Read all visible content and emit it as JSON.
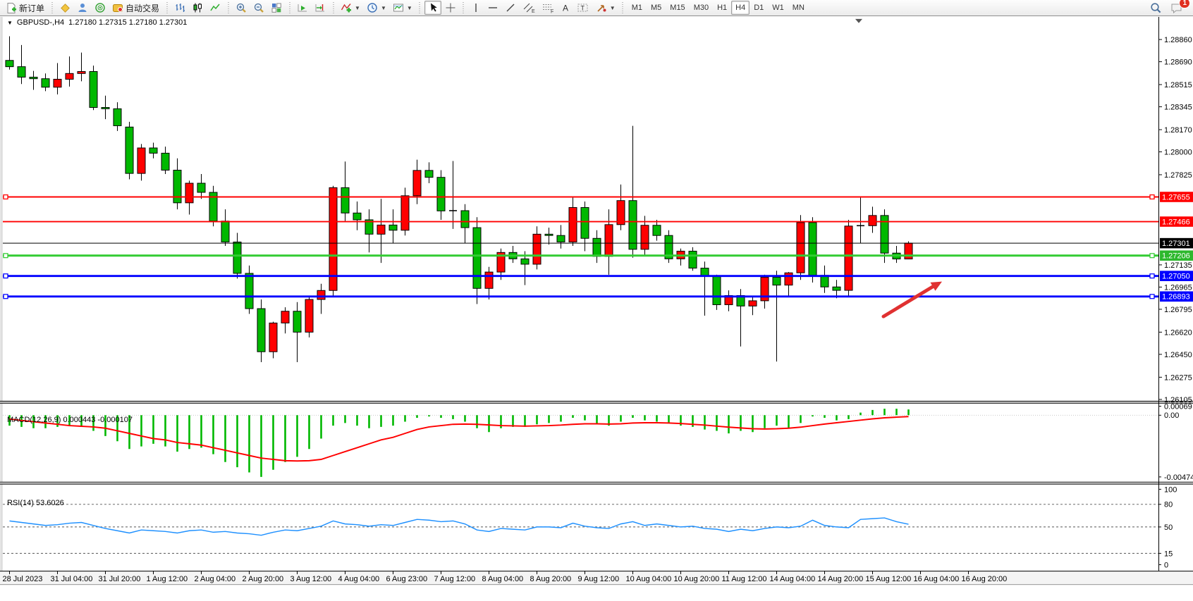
{
  "toolbar": {
    "new_order_label": "新订单",
    "autotrading_label": "自动交易",
    "timeframes": [
      "M1",
      "M5",
      "M15",
      "M30",
      "H1",
      "H4",
      "D1",
      "W1",
      "MN"
    ],
    "active_timeframe": "H4",
    "notification_count": "1"
  },
  "chart": {
    "title_symbol": "GBPUSD-,H4",
    "title_ohlc": "1.27180 1.27315 1.27180 1.27301",
    "colors": {
      "up": "#ff0000",
      "down": "#00b800",
      "wick": "#000000",
      "hline_red": "#ff0000",
      "hline_green": "#33cc33",
      "hline_blue": "#0000ff",
      "price_line": "#000000",
      "arrow": "#e03131",
      "macd_hist": "#00b800",
      "macd_signal": "#ff0000",
      "rsi_line": "#1e90ff"
    },
    "price_axis_ticks": [
      "1.28860",
      "1.28690",
      "1.28515",
      "1.28345",
      "1.28170",
      "1.28000",
      "1.27825",
      "1.27135",
      "1.26965",
      "1.26795",
      "1.26620",
      "1.26450",
      "1.26275",
      "1.26105"
    ],
    "price_tags": [
      {
        "value": "1.27655",
        "bg": "#ff0000",
        "fg": "#ffffff"
      },
      {
        "value": "1.27466",
        "bg": "#ff0000",
        "fg": "#ffffff"
      },
      {
        "value": "1.27301",
        "bg": "#000000",
        "fg": "#ffffff"
      },
      {
        "value": "1.27206",
        "bg": "#2db82d",
        "fg": "#ffffff"
      },
      {
        "value": "1.27050",
        "bg": "#0000ff",
        "fg": "#ffffff"
      },
      {
        "value": "1.26893",
        "bg": "#0000ff",
        "fg": "#ffffff"
      }
    ],
    "hlines": [
      {
        "price": 1.27655,
        "color": "#ff0000",
        "width": 2,
        "handles": true
      },
      {
        "price": 1.27466,
        "color": "#ff0000",
        "width": 2,
        "handles": false
      },
      {
        "price": 1.27301,
        "color": "#000000",
        "width": 1,
        "handles": false
      },
      {
        "price": 1.27206,
        "color": "#33cc33",
        "width": 3,
        "handles": true
      },
      {
        "price": 1.2705,
        "color": "#0000ff",
        "width": 3,
        "handles": true
      },
      {
        "price": 1.26893,
        "color": "#0000ff",
        "width": 3,
        "handles": true
      }
    ],
    "time_labels": [
      "28 Jul 2023",
      "31 Jul 04:00",
      "31 Jul 20:00",
      "1 Aug 12:00",
      "2 Aug 04:00",
      "2 Aug 20:00",
      "3 Aug 12:00",
      "4 Aug 04:00",
      "6 Aug 23:00",
      "7 Aug 12:00",
      "8 Aug 04:00",
      "8 Aug 20:00",
      "9 Aug 12:00",
      "10 Aug 04:00",
      "10 Aug 20:00",
      "11 Aug 12:00",
      "14 Aug 04:00",
      "14 Aug 20:00",
      "15 Aug 12:00",
      "16 Aug 04:00",
      "16 Aug 20:00"
    ],
    "candles": [
      [
        1.287,
        1.28885,
        1.2863,
        1.28652
      ],
      [
        1.28652,
        1.28818,
        1.28519,
        1.28572
      ],
      [
        1.28572,
        1.2862,
        1.28475,
        1.2856
      ],
      [
        1.2856,
        1.286,
        1.28465,
        1.28495
      ],
      [
        1.28495,
        1.2868,
        1.2844,
        1.28556
      ],
      [
        1.28556,
        1.2873,
        1.285,
        1.286
      ],
      [
        1.286,
        1.2876,
        1.2854,
        1.28615
      ],
      [
        1.28615,
        1.2866,
        1.2832,
        1.2834
      ],
      [
        1.2834,
        1.2843,
        1.2825,
        1.2833
      ],
      [
        1.2833,
        1.2838,
        1.2816,
        1.282
      ],
      [
        1.2819,
        1.2823,
        1.2779,
        1.27835
      ],
      [
        1.27835,
        1.2806,
        1.2778,
        1.2803
      ],
      [
        1.2803,
        1.2807,
        1.2795,
        1.2799
      ],
      [
        1.2799,
        1.2804,
        1.2783,
        1.2786
      ],
      [
        1.2786,
        1.2795,
        1.2756,
        1.2761
      ],
      [
        1.2761,
        1.2778,
        1.2752,
        1.2776
      ],
      [
        1.2776,
        1.2783,
        1.2764,
        1.2769
      ],
      [
        1.2769,
        1.2774,
        1.2743,
        1.2747
      ],
      [
        1.2747,
        1.2756,
        1.2728,
        1.2731
      ],
      [
        1.2731,
        1.2738,
        1.2703,
        1.2707
      ],
      [
        1.2707,
        1.2713,
        1.2676,
        1.268
      ],
      [
        1.268,
        1.2687,
        1.2639,
        1.2647
      ],
      [
        1.2647,
        1.267,
        1.2642,
        1.2669
      ],
      [
        1.2669,
        1.2681,
        1.2661,
        1.2678
      ],
      [
        1.2678,
        1.2685,
        1.2639,
        1.2662
      ],
      [
        1.2662,
        1.269,
        1.2658,
        1.2687
      ],
      [
        1.2687,
        1.2699,
        1.2676,
        1.26939
      ],
      [
        1.26939,
        1.2774,
        1.269,
        1.27726
      ],
      [
        1.27726,
        1.27926,
        1.2747,
        1.27532
      ],
      [
        1.27532,
        1.2762,
        1.274,
        1.2748
      ],
      [
        1.2748,
        1.2756,
        1.2723,
        1.2737
      ],
      [
        1.2737,
        1.2764,
        1.2715,
        1.2744
      ],
      [
        1.2744,
        1.2756,
        1.273,
        1.274
      ],
      [
        1.274,
        1.27726,
        1.2736,
        1.27664
      ],
      [
        1.27664,
        1.2794,
        1.276,
        1.27858
      ],
      [
        1.27858,
        1.2792,
        1.2776,
        1.27805
      ],
      [
        1.27805,
        1.2786,
        1.2748,
        1.27548
      ],
      [
        1.27548,
        1.2793,
        1.2741,
        1.2755
      ],
      [
        1.2755,
        1.276,
        1.273,
        1.2742
      ],
      [
        1.2742,
        1.275,
        1.26835,
        1.26955
      ],
      [
        1.26955,
        1.2712,
        1.2687,
        1.2708
      ],
      [
        1.2708,
        1.2726,
        1.2702,
        1.2723
      ],
      [
        1.2723,
        1.2728,
        1.2715,
        1.27181
      ],
      [
        1.27181,
        1.2724,
        1.2698,
        1.2714
      ],
      [
        1.2714,
        1.2743,
        1.271,
        1.2737
      ],
      [
        1.2737,
        1.2742,
        1.2729,
        1.2736
      ],
      [
        1.2736,
        1.2744,
        1.2726,
        1.2731
      ],
      [
        1.2731,
        1.2765,
        1.2728,
        1.27574
      ],
      [
        1.27574,
        1.2762,
        1.2724,
        1.27338
      ],
      [
        1.27338,
        1.274,
        1.2715,
        1.272
      ],
      [
        1.272,
        1.2756,
        1.2706,
        1.27443
      ],
      [
        1.27443,
        1.2775,
        1.274,
        1.27627
      ],
      [
        1.27627,
        1.28199,
        1.2719,
        1.27254
      ],
      [
        1.27254,
        1.2751,
        1.272,
        1.27438
      ],
      [
        1.27438,
        1.2748,
        1.2732,
        1.2736
      ],
      [
        1.2736,
        1.274,
        1.2715,
        1.27181
      ],
      [
        1.27181,
        1.2726,
        1.2713,
        1.2724
      ],
      [
        1.2724,
        1.2727,
        1.2709,
        1.2711
      ],
      [
        1.2711,
        1.2716,
        1.26746,
        1.2705
      ],
      [
        1.2705,
        1.2706,
        1.2679,
        1.2683
      ],
      [
        1.2683,
        1.2694,
        1.2678,
        1.269
      ],
      [
        1.269,
        1.2695,
        1.2651,
        1.2682
      ],
      [
        1.2682,
        1.269,
        1.2675,
        1.2686
      ],
      [
        1.2686,
        1.2706,
        1.268,
        1.2704
      ],
      [
        1.2704,
        1.2709,
        1.26395,
        1.2698
      ],
      [
        1.2698,
        1.2708,
        1.269,
        1.27074
      ],
      [
        1.27074,
        1.27516,
        1.2702,
        1.27459
      ],
      [
        1.27459,
        1.275,
        1.27,
        1.27055
      ],
      [
        1.27055,
        1.2713,
        1.2692,
        1.26966
      ],
      [
        1.26966,
        1.2702,
        1.2688,
        1.2694
      ],
      [
        1.2694,
        1.2748,
        1.269,
        1.27432
      ],
      [
        1.27432,
        1.27655,
        1.273,
        1.27435
      ],
      [
        1.27435,
        1.2758,
        1.2738,
        1.27513
      ],
      [
        1.27513,
        1.2756,
        1.2715,
        1.27225
      ],
      [
        1.27225,
        1.2728,
        1.2715,
        1.2718
      ],
      [
        1.2718,
        1.27315,
        1.2718,
        1.27301
      ]
    ]
  },
  "macd": {
    "label": "MACD(12,26,9) 0.000443 -0.000107",
    "axis_labels": [
      "0.00069",
      "0.00",
      "-0.004748"
    ],
    "axis_values": [
      0.00069,
      0.0,
      -0.004748
    ],
    "histogram": [
      -0.0008,
      -0.0009,
      -0.001,
      -0.001,
      -0.0009,
      -0.0008,
      -0.0009,
      -0.0012,
      -0.0016,
      -0.002,
      -0.0026,
      -0.0024,
      -0.0022,
      -0.0024,
      -0.0028,
      -0.0026,
      -0.0025,
      -0.003,
      -0.0036,
      -0.004,
      -0.0044,
      -0.00475,
      -0.0042,
      -0.0036,
      -0.0032,
      -0.0026,
      -0.0018,
      -0.0008,
      -0.0006,
      -0.0008,
      -0.001,
      -0.0009,
      -0.0008,
      -0.0005,
      -0.0002,
      -0.0001,
      -0.0002,
      -0.0003,
      -0.0005,
      -0.001,
      -0.0013,
      -0.001,
      -0.0009,
      -0.0009,
      -0.0007,
      -0.0006,
      -0.0005,
      -0.0002,
      -0.0004,
      -0.0007,
      -0.0008,
      -0.0005,
      -0.0002,
      -0.0004,
      -0.0005,
      -0.0006,
      -0.0008,
      -0.0009,
      -0.0011,
      -0.0012,
      -0.0014,
      -0.0012,
      -0.0013,
      -0.001,
      -0.0008,
      -0.001,
      -0.0006,
      -0.0001,
      -0.0002,
      -0.0004,
      -0.0003,
      0.0002,
      0.0004,
      0.0005,
      0.0005,
      0.000443
    ],
    "signal": [
      -0.0003,
      -0.0004,
      -0.0005,
      -0.0006,
      -0.0007,
      -0.0008,
      -0.00085,
      -0.0009,
      -0.001,
      -0.0012,
      -0.0014,
      -0.0016,
      -0.0018,
      -0.0019,
      -0.0021,
      -0.0022,
      -0.0023,
      -0.0025,
      -0.0027,
      -0.0029,
      -0.0031,
      -0.0033,
      -0.0034,
      -0.0035,
      -0.00352,
      -0.0035,
      -0.0034,
      -0.0031,
      -0.0028,
      -0.0025,
      -0.0022,
      -0.0019,
      -0.0017,
      -0.0014,
      -0.0011,
      -0.0009,
      -0.0008,
      -0.0007,
      -0.00068,
      -0.0007,
      -0.00075,
      -0.0008,
      -0.00082,
      -0.00084,
      -0.00082,
      -0.0008,
      -0.00076,
      -0.0007,
      -0.00066,
      -0.00066,
      -0.00068,
      -0.00066,
      -0.0006,
      -0.00058,
      -0.00058,
      -0.0006,
      -0.00064,
      -0.0007,
      -0.00076,
      -0.00084,
      -0.00092,
      -0.00098,
      -0.00104,
      -0.00106,
      -0.00104,
      -0.001,
      -0.00092,
      -0.0008,
      -0.00068,
      -0.00058,
      -0.00048,
      -0.00038,
      -0.00028,
      -0.0002,
      -0.00015,
      -0.000107
    ]
  },
  "rsi": {
    "label": "RSI(14) 53.6026",
    "axis_labels": [
      "100",
      "80",
      "50",
      "15",
      "0"
    ],
    "axis_values": [
      100,
      80,
      50,
      15,
      0
    ],
    "dashed_levels": [
      80,
      50,
      15
    ],
    "values": [
      58,
      56,
      54,
      52,
      53,
      55,
      56,
      52,
      48,
      45,
      42,
      46,
      45,
      44,
      42,
      45,
      46,
      43,
      44,
      42,
      41,
      39,
      43,
      46,
      45,
      48,
      51,
      58,
      54,
      53,
      51,
      53,
      52,
      56,
      60,
      59,
      57,
      58,
      54,
      46,
      44,
      48,
      47,
      46,
      50,
      50,
      49,
      55,
      51,
      49,
      48,
      54,
      57,
      52,
      54,
      52,
      50,
      51,
      48,
      47,
      44,
      47,
      45,
      48,
      50,
      49,
      51,
      59,
      52,
      50,
      49,
      60,
      61,
      62,
      57,
      53.6
    ]
  }
}
